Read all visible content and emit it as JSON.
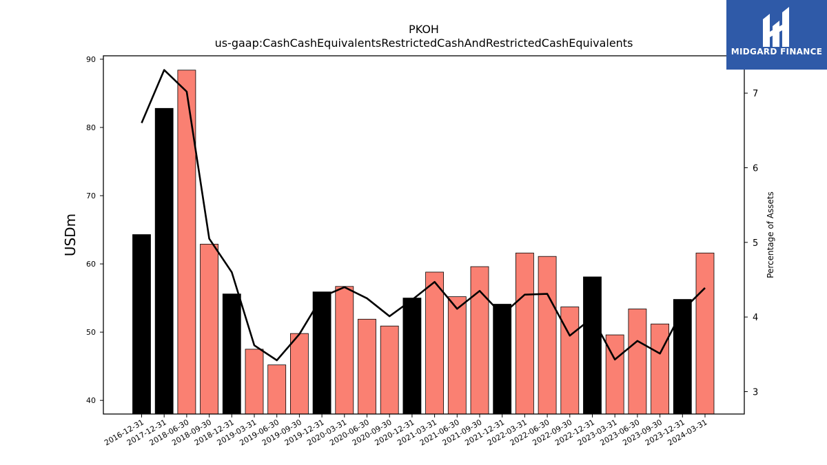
{
  "brand": {
    "name": "MIDGARD FINANCE",
    "bg_color": "#2f5aa8"
  },
  "chart_data": {
    "type": "bar",
    "title": "PKOH",
    "subtitle": "us-gaap:CashCashEquivalentsRestrictedCashAndRestrictedCashEquivalents",
    "ylabel": "USDm",
    "y2label": "Percentage of Assets",
    "ylim": [
      38,
      90.5
    ],
    "y2lim": [
      2.7,
      7.5
    ],
    "yticks": [
      40,
      50,
      60,
      70,
      80,
      90
    ],
    "y2ticks": [
      3,
      4,
      5,
      6,
      7
    ],
    "grid": false,
    "categories": [
      "2016-12-31",
      "2017-12-31",
      "2018-06-30",
      "2018-09-30",
      "2018-12-31",
      "2019-03-31",
      "2019-06-30",
      "2019-09-30",
      "2019-12-31",
      "2020-03-31",
      "2020-06-30",
      "2020-09-30",
      "2020-12-31",
      "2021-03-31",
      "2021-06-30",
      "2021-09-30",
      "2021-12-31",
      "2022-03-31",
      "2022-06-30",
      "2022-09-30",
      "2022-12-31",
      "2023-03-31",
      "2023-06-30",
      "2023-09-30",
      "2023-12-31",
      "2024-03-31"
    ],
    "series": [
      {
        "type": "bar",
        "values": [
          64.3,
          82.8,
          88.4,
          62.9,
          55.6,
          47.5,
          45.2,
          49.8,
          55.9,
          56.7,
          51.9,
          50.9,
          55.0,
          58.8,
          55.2,
          59.6,
          54.1,
          61.6,
          61.1,
          53.7,
          58.1,
          49.6,
          53.4,
          51.2,
          54.8,
          61.6
        ],
        "colors": [
          "#000000",
          "#000000",
          "#fa8072",
          "#fa8072",
          "#000000",
          "#fa8072",
          "#fa8072",
          "#fa8072",
          "#000000",
          "#fa8072",
          "#fa8072",
          "#fa8072",
          "#000000",
          "#fa8072",
          "#fa8072",
          "#fa8072",
          "#000000",
          "#fa8072",
          "#fa8072",
          "#fa8072",
          "#000000",
          "#fa8072",
          "#fa8072",
          "#fa8072",
          "#000000",
          "#fa8072"
        ]
      },
      {
        "type": "line",
        "axis": "right",
        "color": "#000000",
        "values": [
          6.6,
          7.31,
          7.02,
          5.05,
          4.6,
          3.62,
          3.42,
          3.77,
          4.27,
          4.4,
          4.25,
          4.01,
          4.23,
          4.47,
          4.11,
          4.35,
          4.03,
          4.3,
          4.31,
          3.75,
          3.99,
          3.43,
          3.68,
          3.51,
          4.09,
          4.39
        ]
      }
    ]
  }
}
